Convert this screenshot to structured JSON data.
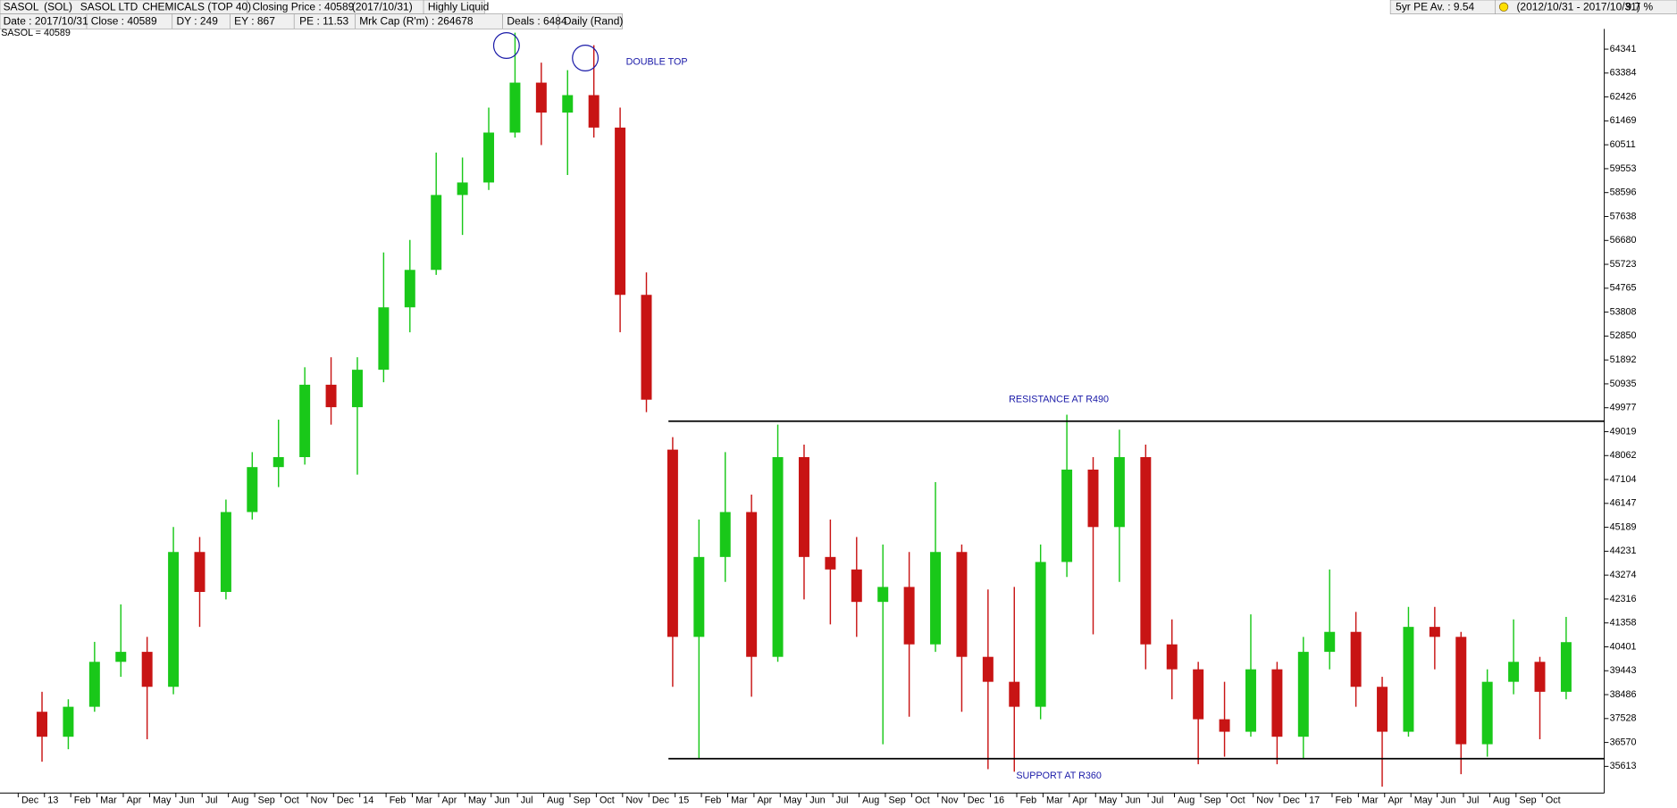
{
  "header": {
    "row1": [
      "SASOL",
      "(SOL)",
      "SASOL LTD",
      "CHEMICALS (TOP 40)",
      "Closing Price : 40589",
      "(2017/10/31)",
      "Highly Liquid"
    ],
    "row1_right": [
      "5yr PE Av. : 9.54",
      "(2012/10/31 - 2017/10/31)",
      "9.7 %"
    ],
    "row2": [
      "Date : 2017/10/31",
      "Close : 40589",
      "DY : 249",
      "EY : 867",
      "PE : 11.53",
      "Mrk Cap (R'm) : 264678",
      "Deals : 6484",
      "Daily (Rand)"
    ]
  },
  "chart_data": {
    "type": "candlestick",
    "series_label": "SASOL = 40589",
    "categories": [
      "Dec",
      "13",
      "Feb",
      "Mar",
      "Apr",
      "May",
      "Jun",
      "Jul",
      "Aug",
      "Sep",
      "Oct",
      "Nov",
      "Dec",
      "14",
      "Feb",
      "Mar",
      "Apr",
      "May",
      "Jun",
      "Jul",
      "Aug",
      "Sep",
      "Oct",
      "Nov",
      "Dec",
      "15",
      "Feb",
      "Mar",
      "Apr",
      "May",
      "Jun",
      "Jul",
      "Aug",
      "Sep",
      "Oct",
      "Nov",
      "Dec",
      "16",
      "Feb",
      "Mar",
      "Apr",
      "May",
      "Jun",
      "Jul",
      "Aug",
      "Sep",
      "Oct",
      "Nov",
      "Dec",
      "17",
      "Feb",
      "Mar",
      "Apr",
      "May",
      "Jun",
      "Jul",
      "Aug",
      "Sep",
      "Oct"
    ],
    "open": [
      37800,
      36800,
      38000,
      39800,
      40200,
      38800,
      44200,
      42600,
      45800,
      47600,
      48000,
      50900,
      50000,
      51500,
      54000,
      55500,
      58500,
      59000,
      61000,
      63000,
      61800,
      62500,
      61200,
      54500,
      48300,
      40800,
      44000,
      45800,
      40000,
      48000,
      44000,
      43500,
      42200,
      42800,
      40500,
      44200,
      40000,
      39000,
      38000,
      43800,
      47500,
      45200,
      48000,
      40500,
      39500,
      37500,
      37000,
      39500,
      36800,
      40200,
      41000,
      38800,
      37000,
      41200,
      40800,
      36500,
      39000,
      39800,
      38600
    ],
    "high": [
      38600,
      38300,
      40600,
      42100,
      40800,
      45200,
      44800,
      46300,
      48200,
      49500,
      51600,
      52000,
      52000,
      56200,
      56700,
      60200,
      60000,
      62000,
      65000,
      63800,
      63500,
      64500,
      62000,
      55400,
      48800,
      45500,
      48200,
      46500,
      49300,
      48500,
      45500,
      44800,
      44500,
      44200,
      47000,
      44500,
      42700,
      42800,
      44500,
      49700,
      48000,
      49100,
      48500,
      41500,
      39800,
      39000,
      41700,
      39800,
      40800,
      43500,
      41800,
      39200,
      42000,
      42000,
      41000,
      39500,
      41500,
      40000,
      41600
    ],
    "low": [
      35800,
      36300,
      37800,
      39200,
      36700,
      38500,
      41200,
      42300,
      45500,
      46800,
      47700,
      49300,
      47300,
      51000,
      53000,
      55300,
      56900,
      58700,
      60800,
      60500,
      59300,
      60800,
      53000,
      49800,
      38800,
      35900,
      43000,
      38400,
      39800,
      42300,
      41300,
      40800,
      36500,
      37600,
      40200,
      37800,
      35500,
      35400,
      37500,
      43200,
      40900,
      43000,
      39500,
      38300,
      35700,
      36000,
      36800,
      35700,
      35900,
      39500,
      38000,
      34800,
      36800,
      39500,
      35300,
      36000,
      38500,
      36700,
      38300
    ],
    "close": [
      36800,
      38000,
      39800,
      40200,
      38800,
      44200,
      42600,
      45800,
      47600,
      48000,
      50900,
      50000,
      51500,
      54000,
      55500,
      58500,
      59000,
      61000,
      63000,
      61800,
      62500,
      61200,
      54500,
      50300,
      40800,
      44000,
      45800,
      40000,
      48000,
      44000,
      43500,
      42200,
      42800,
      40500,
      44200,
      40000,
      39000,
      38000,
      43800,
      47500,
      45200,
      48000,
      40500,
      39500,
      37500,
      37000,
      39500,
      36800,
      40200,
      41000,
      38800,
      37000,
      41200,
      40800,
      36500,
      39000,
      39800,
      38600,
      40589
    ],
    "up_color": "#19c819",
    "down_color": "#c81414",
    "ylim": [
      34545,
      65154
    ],
    "yticks": [
      64341,
      63384,
      62426,
      61469,
      60511,
      59553,
      58596,
      57638,
      56680,
      55723,
      54765,
      53808,
      52850,
      51892,
      50935,
      49977,
      49019,
      48062,
      47104,
      46147,
      45189,
      44231,
      43274,
      42316,
      41358,
      40401,
      39443,
      38486,
      37528,
      36570,
      35613
    ],
    "hlines": [
      {
        "value": 49440,
        "label": "RESISTANCE AT R490"
      },
      {
        "value": 35920,
        "label": "SUPPORT AT R360"
      }
    ],
    "annotations": [
      "DOUBLE TOP"
    ],
    "annotation_color": "#1a1aa8"
  }
}
